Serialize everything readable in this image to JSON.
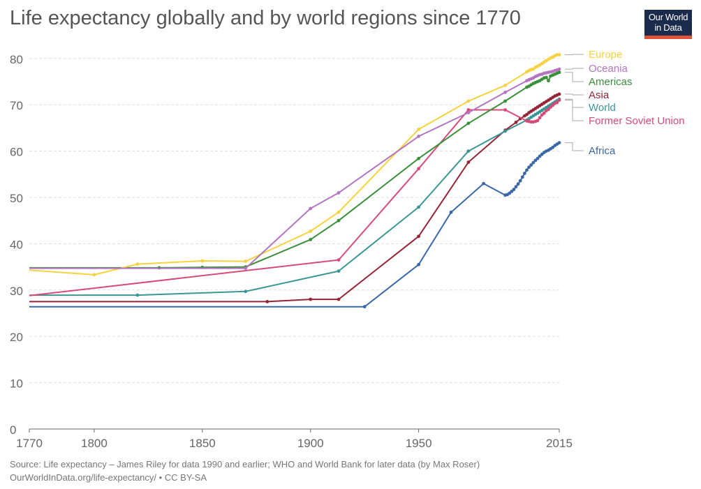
{
  "title": "Life expectancy globally and by world regions since 1770",
  "logo": {
    "line1": "Our World",
    "line2": "in Data"
  },
  "source": {
    "line1": "Source: Life expectancy – James Riley for data 1990 and earlier; WHO and World Bank for later data (by Max Roser)",
    "line2": "OurWorldInData.org/life-expectancy/ • CC BY-SA"
  },
  "chart_data": {
    "type": "line",
    "title": "Life expectancy globally and by world regions since 1770",
    "xlabel": "",
    "ylabel": "",
    "xlim": [
      1770,
      2015
    ],
    "ylim": [
      0,
      85
    ],
    "x_ticks": [
      1770,
      1800,
      1850,
      1900,
      1950,
      2015
    ],
    "y_ticks": [
      0,
      10,
      20,
      30,
      40,
      50,
      60,
      70,
      80
    ],
    "grid": true,
    "legend": "right",
    "series": [
      {
        "name": "Africa",
        "color": "#3a68a6",
        "points": [
          [
            1770,
            26.4
          ],
          [
            1925,
            26.4
          ],
          [
            1950,
            35.5
          ],
          [
            1965,
            46.8
          ],
          [
            1980,
            53
          ],
          [
            1990,
            50.5
          ],
          [
            1991,
            50.6
          ],
          [
            1992,
            50.9
          ],
          [
            1993,
            51.3
          ],
          [
            1994,
            51.7
          ],
          [
            1995,
            52.3
          ],
          [
            1996,
            52.9
          ],
          [
            1997,
            53.6
          ],
          [
            1998,
            54.4
          ],
          [
            1999,
            55.2
          ],
          [
            2000,
            55.9
          ],
          [
            2001,
            56.5
          ],
          [
            2002,
            57
          ],
          [
            2003,
            57.5
          ],
          [
            2004,
            58
          ],
          [
            2005,
            58.4
          ],
          [
            2006,
            58.9
          ],
          [
            2007,
            59.3
          ],
          [
            2008,
            59.7
          ],
          [
            2009,
            60
          ],
          [
            2010,
            60.2
          ],
          [
            2011,
            60.5
          ],
          [
            2012,
            60.8
          ],
          [
            2013,
            61.2
          ],
          [
            2014,
            61.5
          ],
          [
            2015,
            61.8
          ]
        ]
      },
      {
        "name": "Asia",
        "color": "#962437",
        "points": [
          [
            1770,
            27.5
          ],
          [
            1880,
            27.5
          ],
          [
            1900,
            28
          ],
          [
            1913,
            28
          ],
          [
            1950,
            41.6
          ],
          [
            1973,
            57.6
          ],
          [
            1990,
            64.5
          ],
          [
            1995,
            66.2
          ],
          [
            1997,
            67
          ],
          [
            1999,
            67.6
          ],
          [
            2000,
            67.9
          ],
          [
            2001,
            68.3
          ],
          [
            2002,
            68.6
          ],
          [
            2003,
            68.9
          ],
          [
            2004,
            69.2
          ],
          [
            2005,
            69.5
          ],
          [
            2006,
            69.8
          ],
          [
            2007,
            70.1
          ],
          [
            2008,
            70.4
          ],
          [
            2009,
            70.7
          ],
          [
            2010,
            71
          ],
          [
            2011,
            71.3
          ],
          [
            2012,
            71.6
          ],
          [
            2013,
            71.9
          ],
          [
            2014,
            72.1
          ],
          [
            2015,
            72.3
          ]
        ]
      },
      {
        "name": "World",
        "color": "#3a9696",
        "points": [
          [
            1770,
            28.9
          ],
          [
            1820,
            28.9
          ],
          [
            1870,
            29.7
          ],
          [
            1913,
            34.1
          ],
          [
            1950,
            47.9
          ],
          [
            1973,
            60
          ],
          [
            1990,
            64.3
          ],
          [
            2000,
            66.7
          ],
          [
            2001,
            67
          ],
          [
            2002,
            67.3
          ],
          [
            2003,
            67.6
          ],
          [
            2004,
            67.9
          ],
          [
            2005,
            68.2
          ],
          [
            2006,
            68.5
          ],
          [
            2007,
            68.8
          ],
          [
            2008,
            69.1
          ],
          [
            2009,
            69.4
          ],
          [
            2010,
            69.7
          ],
          [
            2011,
            70
          ],
          [
            2012,
            70.3
          ],
          [
            2013,
            70.6
          ],
          [
            2014,
            70.9
          ],
          [
            2015,
            71.2
          ]
        ]
      },
      {
        "name": "Former Soviet Union",
        "color": "#d64a78",
        "points": [
          [
            1770,
            28.8
          ],
          [
            1913,
            36.5
          ],
          [
            1950,
            56.2
          ],
          [
            1973,
            68.9
          ],
          [
            1990,
            68.9
          ],
          [
            2000,
            66.5
          ],
          [
            2001,
            66.4
          ],
          [
            2002,
            66.3
          ],
          [
            2003,
            66.3
          ],
          [
            2004,
            66.4
          ],
          [
            2005,
            66.6
          ],
          [
            2006,
            67.2
          ],
          [
            2007,
            67.8
          ],
          [
            2008,
            68.2
          ],
          [
            2009,
            68.7
          ],
          [
            2010,
            69
          ],
          [
            2011,
            69.5
          ],
          [
            2012,
            69.9
          ],
          [
            2013,
            70.3
          ],
          [
            2014,
            70.5
          ],
          [
            2015,
            71
          ]
        ]
      },
      {
        "name": "Americas",
        "color": "#3a8f3a",
        "points": [
          [
            1770,
            34.8
          ],
          [
            1830,
            34.8
          ],
          [
            1850,
            34.9
          ],
          [
            1870,
            35
          ],
          [
            1900,
            40.9
          ],
          [
            1913,
            45
          ],
          [
            1950,
            58.4
          ],
          [
            1973,
            66
          ],
          [
            1990,
            70.8
          ],
          [
            2000,
            73.8
          ],
          [
            2001,
            74
          ],
          [
            2002,
            74.3
          ],
          [
            2003,
            74.6
          ],
          [
            2004,
            74.8
          ],
          [
            2005,
            75
          ],
          [
            2006,
            75.2
          ],
          [
            2007,
            75.5
          ],
          [
            2008,
            75.8
          ],
          [
            2009,
            75.9
          ],
          [
            2010,
            75.2
          ],
          [
            2011,
            76.2
          ],
          [
            2012,
            76.4
          ],
          [
            2013,
            76.6
          ],
          [
            2014,
            76.8
          ],
          [
            2015,
            77
          ]
        ]
      },
      {
        "name": "Europe",
        "color": "#f5d23e",
        "points": [
          [
            1770,
            34.3
          ],
          [
            1800,
            33.3
          ],
          [
            1820,
            35.6
          ],
          [
            1850,
            36.3
          ],
          [
            1870,
            36.2
          ],
          [
            1900,
            42.7
          ],
          [
            1913,
            46.8
          ],
          [
            1950,
            64.7
          ],
          [
            1973,
            70.8
          ],
          [
            1990,
            74.2
          ],
          [
            2000,
            77.1
          ],
          [
            2001,
            77.4
          ],
          [
            2002,
            77.6
          ],
          [
            2003,
            77.7
          ],
          [
            2004,
            78.1
          ],
          [
            2005,
            78.3
          ],
          [
            2006,
            78.6
          ],
          [
            2007,
            78.9
          ],
          [
            2008,
            79.2
          ],
          [
            2009,
            79.5
          ],
          [
            2010,
            79.8
          ],
          [
            2011,
            80.1
          ],
          [
            2012,
            80.3
          ],
          [
            2013,
            80.6
          ],
          [
            2014,
            80.8
          ],
          [
            2015,
            80.8
          ]
        ]
      },
      {
        "name": "Oceania",
        "color": "#b374c2",
        "points": [
          [
            1770,
            34.7
          ],
          [
            1870,
            34.7
          ],
          [
            1900,
            47.6
          ],
          [
            1913,
            51
          ],
          [
            1950,
            63.2
          ],
          [
            1973,
            68.3
          ],
          [
            1990,
            72.7
          ],
          [
            2000,
            75.2
          ],
          [
            2001,
            75.4
          ],
          [
            2002,
            75.6
          ],
          [
            2003,
            75.8
          ],
          [
            2004,
            76.1
          ],
          [
            2005,
            76.3
          ],
          [
            2006,
            76.5
          ],
          [
            2007,
            76.6
          ],
          [
            2008,
            76.8
          ],
          [
            2009,
            76.9
          ],
          [
            2010,
            77
          ],
          [
            2011,
            77.1
          ],
          [
            2012,
            77.2
          ],
          [
            2013,
            77.4
          ],
          [
            2014,
            77.5
          ],
          [
            2015,
            77.7
          ]
        ]
      }
    ]
  }
}
